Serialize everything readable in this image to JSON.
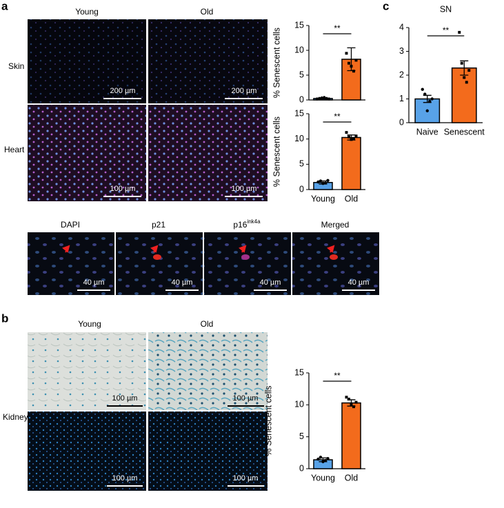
{
  "panel_labels": [
    "a",
    "b",
    "c"
  ],
  "tissue_images": {
    "columns": [
      "Young",
      "Old"
    ],
    "rows": [
      "Skin",
      "Heart"
    ],
    "scale_bars": [
      "200 µm",
      "200 µm",
      "100 µm",
      "100 µm"
    ]
  },
  "stain_images": {
    "labels": [
      "DAPI",
      "p21",
      "p16",
      "Merged"
    ],
    "superscript": "ink4a",
    "scale_bars": [
      "40 µm",
      "40 µm",
      "40 µm",
      "40 µm"
    ]
  },
  "kidney_images": {
    "columns": [
      "Young",
      "Old"
    ],
    "row": "Kidney",
    "scale_bars": [
      "100 µm",
      "100 µm",
      "100 µm",
      "100 µm"
    ]
  },
  "chart_data": [
    {
      "type": "bar",
      "ylabel": "% Senescent cells",
      "categories": [
        null,
        null
      ],
      "values": [
        0.3,
        8.2
      ],
      "errors": [
        0.1,
        2.3
      ],
      "points": [
        [
          0.2,
          0.3,
          0.4,
          0.5,
          0.3,
          0.2
        ],
        [
          9.4,
          7.4,
          6.8,
          5.8,
          8.0
        ]
      ],
      "colors": [
        "#58a2e8",
        "#f36b1c"
      ],
      "ylim": [
        0,
        15
      ],
      "yticks": [
        0,
        5,
        10,
        15
      ],
      "annotation": "**"
    },
    {
      "type": "bar",
      "ylabel": "% Senescent cells",
      "categories": [
        "Young",
        "Old"
      ],
      "values": [
        1.4,
        10.3
      ],
      "errors": [
        0.3,
        0.5
      ],
      "points": [
        [
          1.5,
          1.7,
          1.2,
          1.3,
          1.8
        ],
        [
          11.3,
          10.4,
          9.9,
          10.1,
          10.6
        ]
      ],
      "colors": [
        "#58a2e8",
        "#f36b1c"
      ],
      "ylim": [
        0,
        15
      ],
      "yticks": [
        0,
        5,
        10,
        15
      ],
      "annotation": "**"
    },
    {
      "type": "bar",
      "title": "SN",
      "categories": [
        "Naive",
        "Senescent"
      ],
      "values": [
        1.0,
        2.3
      ],
      "errors": [
        0.15,
        0.3
      ],
      "points": [
        [
          1.4,
          1.2,
          0.5,
          0.9,
          1.0
        ],
        [
          3.8,
          2.5,
          1.9,
          1.7,
          2.2
        ]
      ],
      "colors": [
        "#58a2e8",
        "#f36b1c"
      ],
      "ylim": [
        0,
        4
      ],
      "yticks": [
        0,
        1,
        2,
        3,
        4
      ],
      "annotation": "**"
    },
    {
      "type": "bar",
      "ylabel": "% Senescent cells",
      "categories": [
        "Young",
        "Old"
      ],
      "values": [
        1.4,
        10.3
      ],
      "errors": [
        0.3,
        0.5
      ],
      "points": [
        [
          1.5,
          1.8,
          1.1,
          1.3,
          1.6
        ],
        [
          11.2,
          10.9,
          10.1,
          9.7,
          10.4
        ]
      ],
      "colors": [
        "#58a2e8",
        "#f36b1c"
      ],
      "ylim": [
        0,
        15
      ],
      "yticks": [
        0,
        5,
        10,
        15
      ],
      "annotation": "**"
    }
  ]
}
